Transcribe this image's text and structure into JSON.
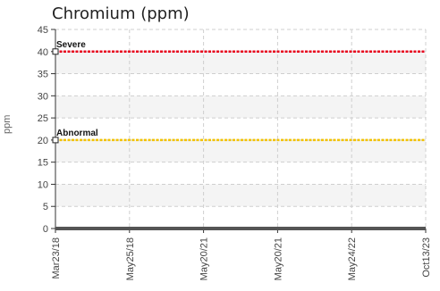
{
  "chart_data": {
    "type": "line",
    "title": "Chromium (ppm)",
    "ylabel": "ppm",
    "xlabel": "",
    "ylim": [
      0,
      45
    ],
    "yticks": [
      0,
      5,
      10,
      15,
      20,
      25,
      30,
      35,
      40,
      45
    ],
    "x_tick_labels": [
      "Mar23/18",
      "May25/18",
      "May20/21",
      "May20/21",
      "May24/22",
      "Oct13/23"
    ],
    "grid": true,
    "thresholds": [
      {
        "name": "Severe",
        "value": 40,
        "color": "#e8001c"
      },
      {
        "name": "Abnormal",
        "value": 20,
        "color": "#f2c200"
      }
    ],
    "series": [
      {
        "values": [
          0,
          0,
          0,
          0,
          0,
          0
        ],
        "color": "#555555"
      }
    ]
  }
}
